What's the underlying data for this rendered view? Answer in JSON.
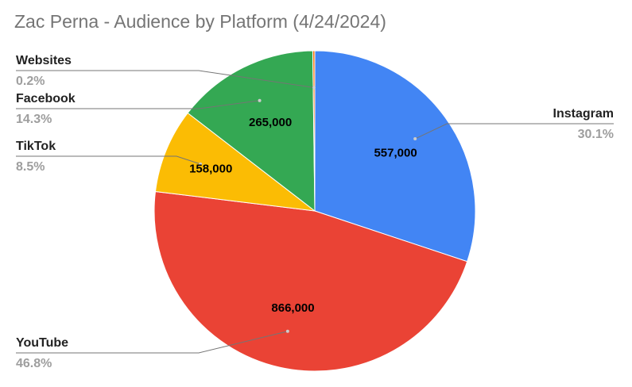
{
  "chart_data": {
    "type": "pie",
    "title": "Zac Perna - Audience by Platform (4/24/2024)",
    "slices": [
      {
        "name": "Instagram",
        "value": 557000,
        "value_label": "557,000",
        "percent_label": "30.1%",
        "color": "#4285F4"
      },
      {
        "name": "YouTube",
        "value": 866000,
        "value_label": "866,000",
        "percent_label": "46.8%",
        "color": "#EA4335"
      },
      {
        "name": "TikTok",
        "value": 158000,
        "value_label": "158,000",
        "percent_label": "8.5%",
        "color": "#FBBC04"
      },
      {
        "name": "Facebook",
        "value": 265000,
        "value_label": "265,000",
        "percent_label": "14.3%",
        "color": "#34A853"
      },
      {
        "name": "Websites",
        "value": 3700,
        "value_label": "",
        "percent_label": "0.2%",
        "color": "#FF6D01"
      }
    ],
    "legend": "callout labels",
    "leader_line_color": "#757575"
  }
}
